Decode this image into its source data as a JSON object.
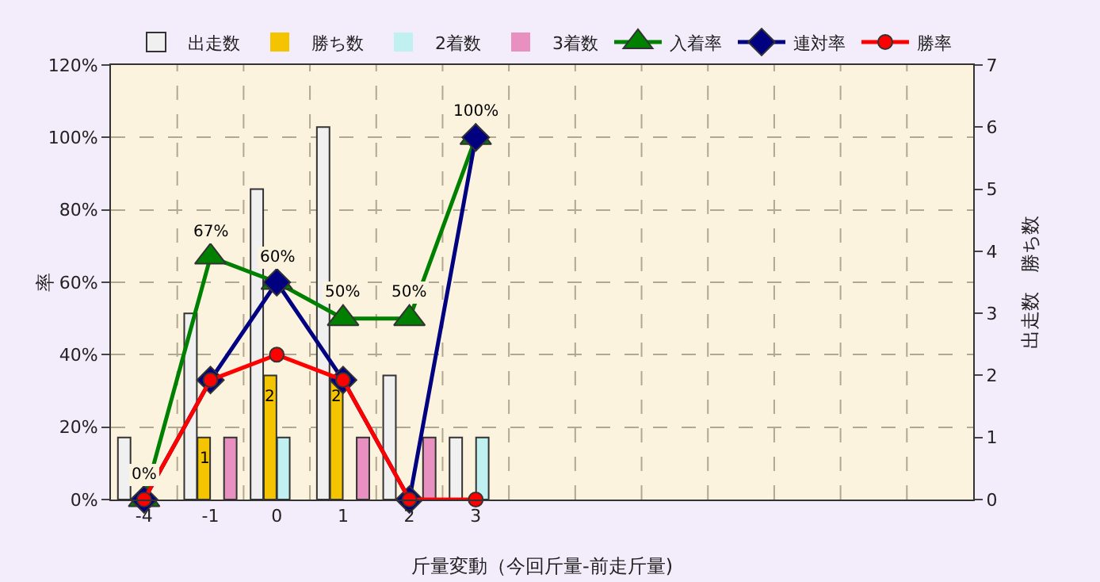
{
  "chart_data": {
    "type": "bar",
    "xlabel": "斤量変動（今回斤量-前走斤量)",
    "ylabel": "率",
    "y2label": "出走数　勝ち数",
    "categories": [
      "-4",
      "-1",
      "0",
      "1",
      "2",
      "3",
      null,
      null,
      null,
      null,
      null,
      null,
      null
    ],
    "series": [
      {
        "name": "出走数",
        "axis": "y2",
        "color": "#f0f0f0",
        "values": [
          1,
          3,
          5,
          6,
          2,
          1,
          null,
          null,
          null,
          null,
          null,
          null,
          null
        ]
      },
      {
        "name": "勝ち数",
        "axis": "y2",
        "color": "#f5c400",
        "values": [
          0,
          1,
          2,
          2,
          0,
          0,
          null,
          null,
          null,
          null,
          null,
          null,
          null
        ],
        "value_labels": [
          null,
          "1",
          "2",
          "2",
          null,
          null,
          null,
          null,
          null,
          null,
          null,
          null,
          null
        ]
      },
      {
        "name": "2着数",
        "axis": "y2",
        "color": "#c0f0f0",
        "values": [
          0,
          0,
          1,
          0,
          0,
          1,
          null,
          null,
          null,
          null,
          null,
          null,
          null
        ]
      },
      {
        "name": "3着数",
        "axis": "y2",
        "color": "#e890c0",
        "values": [
          0,
          1,
          0,
          1,
          1,
          0,
          null,
          null,
          null,
          null,
          null,
          null,
          null
        ]
      },
      {
        "name": "入着率",
        "type": "line",
        "marker": "triangle",
        "color": "#008000",
        "values": [
          0,
          67,
          60,
          50,
          50,
          100,
          null,
          null,
          null,
          null,
          null,
          null,
          null
        ],
        "value_labels": [
          "0%",
          "67%",
          "60%",
          "50%",
          "50%",
          "100%",
          null,
          null,
          null,
          null,
          null,
          null,
          null
        ]
      },
      {
        "name": "連対率",
        "type": "line",
        "marker": "diamond",
        "color": "#000080",
        "values": [
          0,
          33,
          60,
          33,
          0,
          100,
          null,
          null,
          null,
          null,
          null,
          null,
          null
        ]
      },
      {
        "name": "勝率",
        "type": "line",
        "marker": "circle",
        "color": "#ff0000",
        "values": [
          0,
          33,
          40,
          33,
          0,
          0,
          null,
          null,
          null,
          null,
          null,
          null,
          null
        ]
      }
    ],
    "ylim": [
      0,
      120
    ],
    "yticks": [
      {
        "value": 0,
        "label": "0%"
      },
      {
        "value": 20,
        "label": "20%"
      },
      {
        "value": 40,
        "label": "40%"
      },
      {
        "value": 60,
        "label": "60%"
      },
      {
        "value": 80,
        "label": "80%"
      },
      {
        "value": 100,
        "label": "100%"
      },
      {
        "value": 120,
        "label": "120%"
      }
    ],
    "y2lim": [
      0,
      7
    ],
    "y2ticks": [
      0,
      1,
      2,
      3,
      4,
      5,
      6,
      7
    ],
    "grid": true,
    "legend": "top"
  }
}
